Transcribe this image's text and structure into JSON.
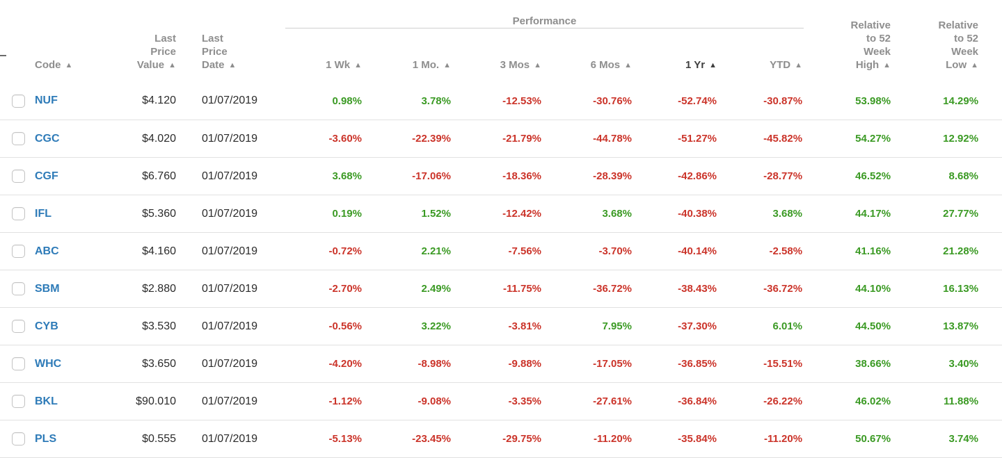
{
  "colors": {
    "positive": "#3b9a24",
    "negative": "#cb342a",
    "link": "#2e7bb8",
    "header": "#8e8e8e",
    "header_active": "#3f3f3f"
  },
  "icons": {
    "sort_asc": "▲"
  },
  "header": {
    "performance_group": "Performance",
    "code": "Code",
    "value": "Last\nPrice\nValue",
    "date": "Last\nPrice\nDate",
    "wk1": "1 Wk",
    "mo1": "1 Mo.",
    "mos3": "3 Mos",
    "mos6": "6 Mos",
    "yr1": "1 Yr",
    "ytd": "YTD",
    "rel_high": "Relative\nto 52\nWeek\nHigh",
    "rel_low": "Relative\nto 52\nWeek\nLow",
    "sorted_by": "1 Yr"
  },
  "rows": [
    {
      "code": "NUF",
      "value": "$4.120",
      "date": "01/07/2019",
      "perf": [
        "0.98%",
        "3.78%",
        "-12.53%",
        "-30.76%",
        "-52.74%",
        "-30.87%"
      ],
      "rel": [
        "53.98%",
        "14.29%"
      ]
    },
    {
      "code": "CGC",
      "value": "$4.020",
      "date": "01/07/2019",
      "perf": [
        "-3.60%",
        "-22.39%",
        "-21.79%",
        "-44.78%",
        "-51.27%",
        "-45.82%"
      ],
      "rel": [
        "54.27%",
        "12.92%"
      ]
    },
    {
      "code": "CGF",
      "value": "$6.760",
      "date": "01/07/2019",
      "perf": [
        "3.68%",
        "-17.06%",
        "-18.36%",
        "-28.39%",
        "-42.86%",
        "-28.77%"
      ],
      "rel": [
        "46.52%",
        "8.68%"
      ]
    },
    {
      "code": "IFL",
      "value": "$5.360",
      "date": "01/07/2019",
      "perf": [
        "0.19%",
        "1.52%",
        "-12.42%",
        "3.68%",
        "-40.38%",
        "3.68%"
      ],
      "rel": [
        "44.17%",
        "27.77%"
      ]
    },
    {
      "code": "ABC",
      "value": "$4.160",
      "date": "01/07/2019",
      "perf": [
        "-0.72%",
        "2.21%",
        "-7.56%",
        "-3.70%",
        "-40.14%",
        "-2.58%"
      ],
      "rel": [
        "41.16%",
        "21.28%"
      ]
    },
    {
      "code": "SBM",
      "value": "$2.880",
      "date": "01/07/2019",
      "perf": [
        "-2.70%",
        "2.49%",
        "-11.75%",
        "-36.72%",
        "-38.43%",
        "-36.72%"
      ],
      "rel": [
        "44.10%",
        "16.13%"
      ]
    },
    {
      "code": "CYB",
      "value": "$3.530",
      "date": "01/07/2019",
      "perf": [
        "-0.56%",
        "3.22%",
        "-3.81%",
        "7.95%",
        "-37.30%",
        "6.01%"
      ],
      "rel": [
        "44.50%",
        "13.87%"
      ]
    },
    {
      "code": "WHC",
      "value": "$3.650",
      "date": "01/07/2019",
      "perf": [
        "-4.20%",
        "-8.98%",
        "-9.88%",
        "-17.05%",
        "-36.85%",
        "-15.51%"
      ],
      "rel": [
        "38.66%",
        "3.40%"
      ]
    },
    {
      "code": "BKL",
      "value": "$90.010",
      "date": "01/07/2019",
      "perf": [
        "-1.12%",
        "-9.08%",
        "-3.35%",
        "-27.61%",
        "-36.84%",
        "-26.22%"
      ],
      "rel": [
        "46.02%",
        "11.88%"
      ]
    },
    {
      "code": "PLS",
      "value": "$0.555",
      "date": "01/07/2019",
      "perf": [
        "-5.13%",
        "-23.45%",
        "-29.75%",
        "-11.20%",
        "-35.84%",
        "-11.20%"
      ],
      "rel": [
        "50.67%",
        "3.74%"
      ]
    }
  ]
}
